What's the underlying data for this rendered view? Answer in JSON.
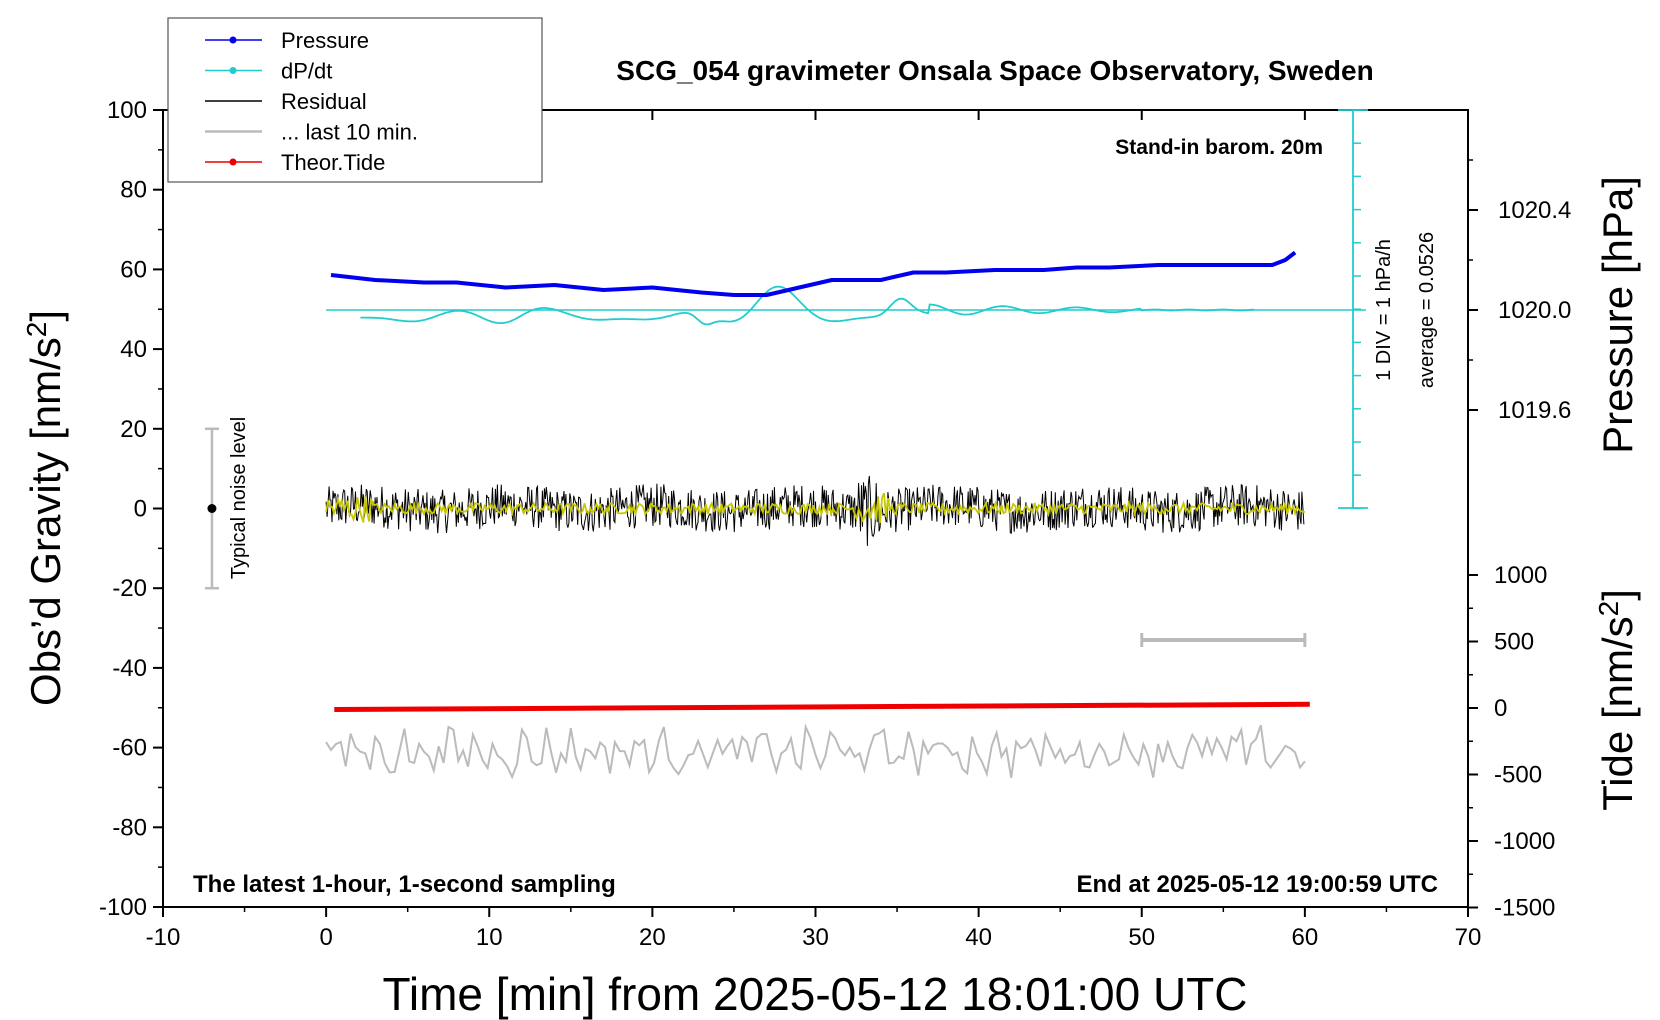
{
  "chart_data": {
    "type": "line",
    "title": "SCG_054 gravimeter Onsala Space Observatory, Sweden",
    "xlabel": "Time [min] from 2025-05-12 18:01:00 UTC",
    "ylabel_left_main": "Obs’d Gravity [nm/s",
    "ylabel_left_sup": "2",
    "ylabel_left_end": "]",
    "ylabel_right_pressure": "Pressure [hPa]",
    "ylabel_right_tide_main": "Tide [nm/s",
    "ylabel_right_tide_sup": "2",
    "ylabel_right_tide_end": "]",
    "xlim": [
      -10,
      70
    ],
    "ylim": [
      -100,
      100
    ],
    "pressure_ylim": [
      1019.2,
      1020.8
    ],
    "tide_ylim": [
      -1500,
      1500
    ],
    "x_ticks": [
      "-10",
      "0",
      "10",
      "20",
      "30",
      "40",
      "50",
      "60",
      "70"
    ],
    "y_ticks": [
      "100",
      "80",
      "60",
      "40",
      "20",
      "0",
      "-20",
      "-40",
      "-60",
      "-80",
      "-100"
    ],
    "pressure_ticks": [
      "1020.4",
      "1020.0",
      "1019.6"
    ],
    "tide_ticks": [
      "1000",
      "500",
      "0",
      "-500",
      "-1000",
      "-1500"
    ],
    "grid": false,
    "legend_position": "top-left",
    "legend": [
      {
        "name": "Pressure",
        "color": "#0000ee",
        "marker": true
      },
      {
        "name": "dP/dt",
        "color": "#22cccc",
        "marker": true
      },
      {
        "name": "Residual",
        "color": "#000000",
        "marker": false
      },
      {
        "name": "... last 10 min.",
        "color": "#bbbbbb",
        "marker": false
      },
      {
        "name": "Theor.Tide",
        "color": "#ee0000",
        "marker": true
      }
    ],
    "annotations": {
      "stand_in": "Stand-in barom. 20m",
      "latest": "The latest 1-hour, 1-second sampling",
      "end": "End at 2025-05-12 19:00:59 UTC",
      "noise": "Typical noise level",
      "div": "1 DIV = 1 hPa/h",
      "average": "average = 0.0526"
    },
    "colors": {
      "pressure": "#0000ee",
      "dpdt": "#22cccc",
      "residual": "#000000",
      "residual_smooth": "#c8c800",
      "last10": "#bbbbbb",
      "tide": "#ee0000"
    },
    "series": [
      {
        "name": "Pressure",
        "unit": "hPa",
        "x": [
          0.3,
          3,
          6,
          8,
          11,
          14,
          17,
          20,
          23,
          25,
          27,
          29,
          31,
          34,
          36,
          38,
          41,
          44,
          46,
          48,
          51,
          54,
          56,
          58,
          58.8,
          59.4
        ],
        "y": [
          1020.14,
          1020.12,
          1020.11,
          1020.11,
          1020.09,
          1020.1,
          1020.08,
          1020.09,
          1020.07,
          1020.06,
          1020.06,
          1020.09,
          1020.12,
          1020.12,
          1020.15,
          1020.15,
          1020.16,
          1020.16,
          1020.17,
          1020.17,
          1020.18,
          1020.18,
          1020.18,
          1020.18,
          1020.2,
          1020.23
        ]
      },
      {
        "name": "dP/dt",
        "unit": "hPa/h",
        "values": "plotted as wavy trace around baseline 1020.0 (1 DIV = 1 hPa/h)"
      },
      {
        "name": "Residual",
        "unit": "nm/s2",
        "x_range": [
          0,
          60
        ],
        "center": 0,
        "amplitude_approx": 6
      },
      {
        "name": "... last 10 min.",
        "unit": "nm/s2",
        "x_range": [
          0,
          60
        ],
        "center": -61,
        "amplitude_approx": 5
      },
      {
        "name": "Theor.Tide",
        "unit": "nm/s2",
        "x": [
          0.5,
          60.3
        ],
        "y": [
          -11,
          28
        ]
      }
    ],
    "error_bars": [
      {
        "label": "Typical noise level",
        "x": -7,
        "y": 0,
        "ymin": -20,
        "ymax": 20
      },
      {
        "label": "last 10 min.",
        "xmin": 50,
        "xmax": 60,
        "y": -33
      }
    ]
  }
}
